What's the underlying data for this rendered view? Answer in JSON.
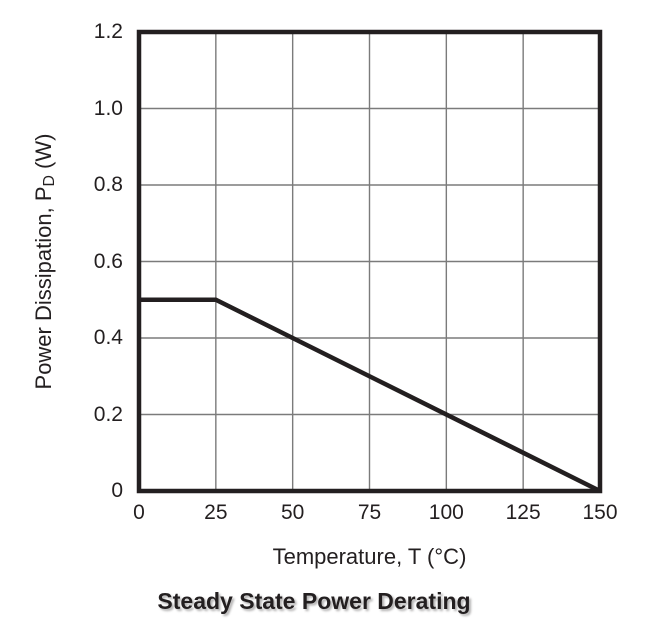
{
  "figure": {
    "title": "Steady State Power Derating",
    "x_axis_label": "Temperature, T (°C)",
    "y_axis_label": {
      "prefix": "Power Dissipation, P",
      "subscript": "D",
      "suffix": " (W)"
    }
  },
  "colors": {
    "line": "#231f20",
    "border": "#231f20",
    "grid": "#7b7b7b",
    "text": "#231f20"
  },
  "chart_data": {
    "type": "line",
    "title": "Steady State Power Derating",
    "xlabel": "Temperature, T (°C)",
    "ylabel": "Power Dissipation, PD (W)",
    "xlim": [
      0,
      150
    ],
    "ylim": [
      0,
      1.2
    ],
    "x_ticks": [
      0,
      25,
      50,
      75,
      100,
      125,
      150
    ],
    "y_ticks": [
      0,
      0.2,
      0.4,
      0.6,
      0.8,
      1.0,
      1.2
    ],
    "x_tick_labels": [
      "0",
      "25",
      "50",
      "75",
      "100",
      "125",
      "150"
    ],
    "y_tick_labels": [
      "0",
      "0.2",
      "0.4",
      "0.6",
      "0.8",
      "1.0",
      "1.2"
    ],
    "grid": true,
    "legend": false,
    "series": [
      {
        "name": "steady-state-derating",
        "points": [
          [
            0,
            0.5
          ],
          [
            25,
            0.5
          ],
          [
            150,
            0
          ]
        ]
      }
    ]
  }
}
